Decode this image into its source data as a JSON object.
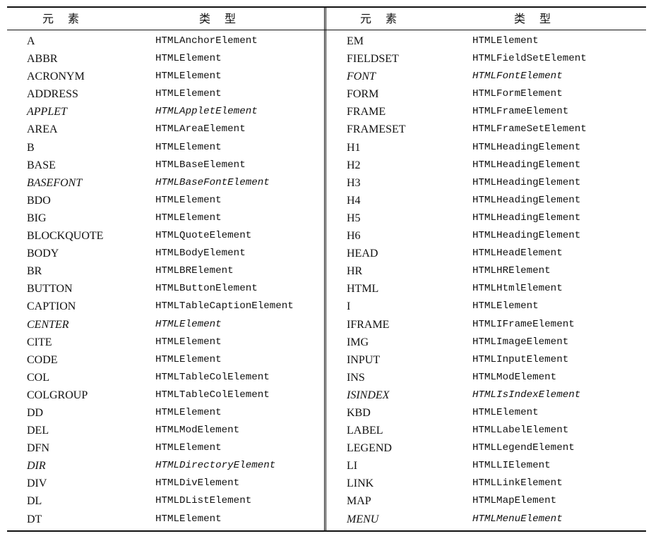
{
  "header": {
    "element_label": "元素",
    "type_label": "类型"
  },
  "left_rows": [
    {
      "element": "A",
      "type": "HTMLAnchorElement",
      "deprecated": false
    },
    {
      "element": "ABBR",
      "type": "HTMLElement",
      "deprecated": false
    },
    {
      "element": "ACRONYM",
      "type": "HTMLElement",
      "deprecated": false
    },
    {
      "element": "ADDRESS",
      "type": "HTMLElement",
      "deprecated": false
    },
    {
      "element": "APPLET",
      "type": "HTMLAppletElement",
      "deprecated": true
    },
    {
      "element": "AREA",
      "type": "HTMLAreaElement",
      "deprecated": false
    },
    {
      "element": "B",
      "type": "HTMLElement",
      "deprecated": false
    },
    {
      "element": "BASE",
      "type": "HTMLBaseElement",
      "deprecated": false
    },
    {
      "element": "BASEFONT",
      "type": "HTMLBaseFontElement",
      "deprecated": true
    },
    {
      "element": "BDO",
      "type": "HTMLElement",
      "deprecated": false
    },
    {
      "element": "BIG",
      "type": "HTMLElement",
      "deprecated": false
    },
    {
      "element": "BLOCKQUOTE",
      "type": "HTMLQuoteElement",
      "deprecated": false
    },
    {
      "element": "BODY",
      "type": "HTMLBodyElement",
      "deprecated": false
    },
    {
      "element": "BR",
      "type": "HTMLBRElement",
      "deprecated": false
    },
    {
      "element": "BUTTON",
      "type": "HTMLButtonElement",
      "deprecated": false
    },
    {
      "element": "CAPTION",
      "type": "HTMLTableCaptionElement",
      "deprecated": false
    },
    {
      "element": "CENTER",
      "type": "HTMLElement",
      "deprecated": true
    },
    {
      "element": "CITE",
      "type": "HTMLElement",
      "deprecated": false
    },
    {
      "element": "CODE",
      "type": "HTMLElement",
      "deprecated": false
    },
    {
      "element": "COL",
      "type": "HTMLTableColElement",
      "deprecated": false
    },
    {
      "element": "COLGROUP",
      "type": "HTMLTableColElement",
      "deprecated": false
    },
    {
      "element": "DD",
      "type": "HTMLElement",
      "deprecated": false
    },
    {
      "element": "DEL",
      "type": "HTMLModElement",
      "deprecated": false
    },
    {
      "element": "DFN",
      "type": "HTMLElement",
      "deprecated": false
    },
    {
      "element": "DIR",
      "type": "HTMLDirectoryElement",
      "deprecated": true
    },
    {
      "element": "DIV",
      "type": "HTMLDivElement",
      "deprecated": false
    },
    {
      "element": "DL",
      "type": "HTMLDListElement",
      "deprecated": false
    },
    {
      "element": "DT",
      "type": "HTMLElement",
      "deprecated": false
    }
  ],
  "right_rows": [
    {
      "element": "EM",
      "type": "HTMLElement",
      "deprecated": false
    },
    {
      "element": "FIELDSET",
      "type": "HTMLFieldSetElement",
      "deprecated": false
    },
    {
      "element": "FONT",
      "type": "HTMLFontElement",
      "deprecated": true
    },
    {
      "element": "FORM",
      "type": "HTMLFormElement",
      "deprecated": false
    },
    {
      "element": "FRAME",
      "type": "HTMLFrameElement",
      "deprecated": false
    },
    {
      "element": "FRAMESET",
      "type": "HTMLFrameSetElement",
      "deprecated": false
    },
    {
      "element": "H1",
      "type": "HTMLHeadingElement",
      "deprecated": false
    },
    {
      "element": "H2",
      "type": "HTMLHeadingElement",
      "deprecated": false
    },
    {
      "element": "H3",
      "type": "HTMLHeadingElement",
      "deprecated": false
    },
    {
      "element": "H4",
      "type": "HTMLHeadingElement",
      "deprecated": false
    },
    {
      "element": "H5",
      "type": "HTMLHeadingElement",
      "deprecated": false
    },
    {
      "element": "H6",
      "type": "HTMLHeadingElement",
      "deprecated": false
    },
    {
      "element": "HEAD",
      "type": "HTMLHeadElement",
      "deprecated": false
    },
    {
      "element": "HR",
      "type": "HTMLHRElement",
      "deprecated": false
    },
    {
      "element": "HTML",
      "type": "HTMLHtmlElement",
      "deprecated": false
    },
    {
      "element": "I",
      "type": "HTMLElement",
      "deprecated": false
    },
    {
      "element": "IFRAME",
      "type": "HTMLIFrameElement",
      "deprecated": false
    },
    {
      "element": "IMG",
      "type": "HTMLImageElement",
      "deprecated": false
    },
    {
      "element": "INPUT",
      "type": "HTMLInputElement",
      "deprecated": false
    },
    {
      "element": "INS",
      "type": "HTMLModElement",
      "deprecated": false
    },
    {
      "element": "ISINDEX",
      "type": "HTMLIsIndexElement",
      "deprecated": true
    },
    {
      "element": "KBD",
      "type": "HTMLElement",
      "deprecated": false
    },
    {
      "element": "LABEL",
      "type": "HTMLLabelElement",
      "deprecated": false
    },
    {
      "element": "LEGEND",
      "type": "HTMLLegendElement",
      "deprecated": false
    },
    {
      "element": "LI",
      "type": "HTMLLIElement",
      "deprecated": false
    },
    {
      "element": "LINK",
      "type": "HTMLLinkElement",
      "deprecated": false
    },
    {
      "element": "MAP",
      "type": "HTMLMapElement",
      "deprecated": false
    },
    {
      "element": "MENU",
      "type": "HTMLMenuElement",
      "deprecated": true
    }
  ]
}
